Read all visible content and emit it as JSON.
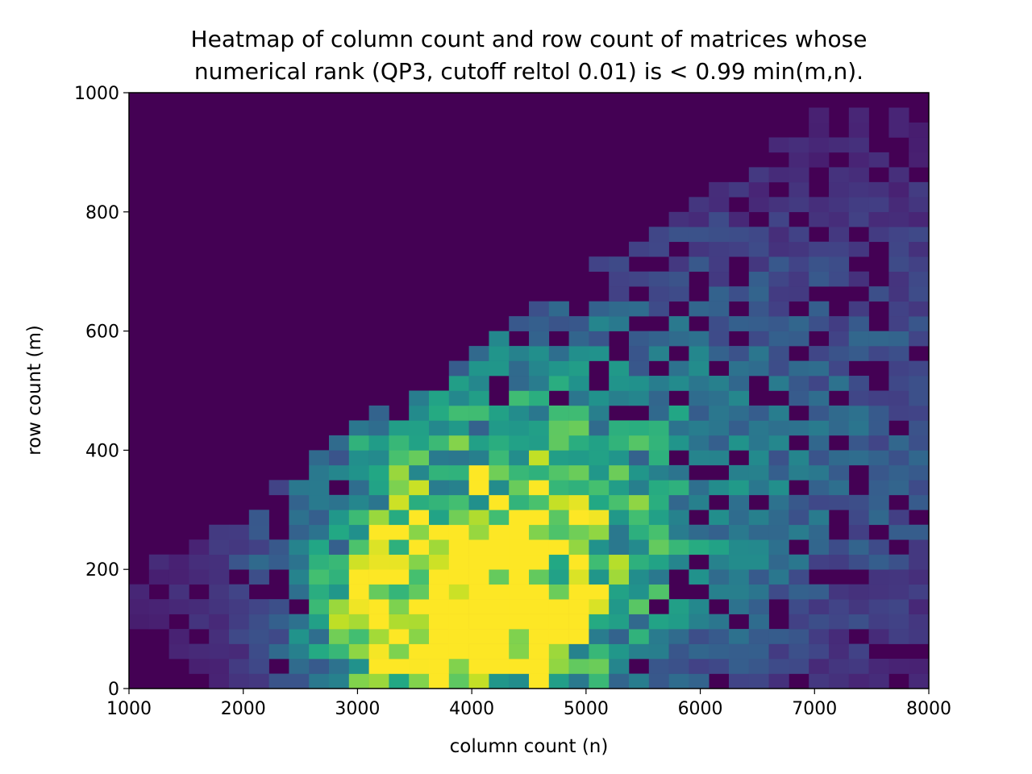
{
  "chart_data": {
    "type": "heatmap",
    "title_lines": [
      "Heatmap of column count and row count of matrices whose",
      "numerical rank (QP3, cutoff reltol 0.01) is < 0.99 min(m,n)."
    ],
    "xlabel": "column count (n)",
    "ylabel": "row count (m)",
    "xlim": [
      1000,
      8000
    ],
    "ylim": [
      0,
      1000
    ],
    "x_ticks": [
      "1000",
      "2000",
      "3000",
      "4000",
      "5000",
      "6000",
      "7000",
      "8000"
    ],
    "y_ticks": [
      "0",
      "200",
      "400",
      "600",
      "800",
      "1000"
    ],
    "colormap": "viridis",
    "grid": false,
    "legend": "none",
    "bins": {
      "x_bins": 40,
      "y_bins": 40
    },
    "description_of_values": "Counts per bin are normalized 0..1 (relative intensity); peak density near n≈3900, m≈90 with a broad high-density region for n 2500–5000, m 0–350.",
    "peak": {
      "x": 3900,
      "y": 90
    }
  }
}
